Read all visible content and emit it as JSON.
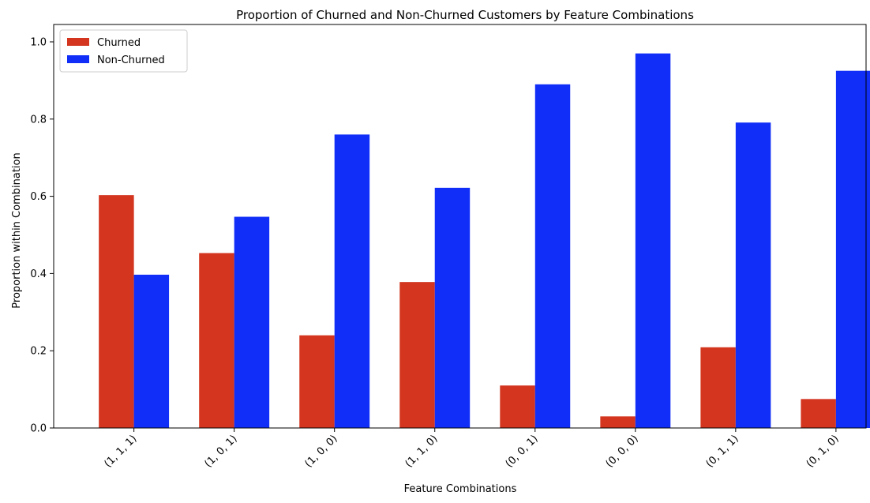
{
  "chart_data": {
    "type": "bar",
    "title": "Proportion of Churned and Non-Churned Customers by Feature Combinations",
    "xlabel": "Feature Combinations",
    "ylabel": "Proportion within Combination",
    "categories": [
      "(1, 1, 1)",
      "(1, 0, 1)",
      "(1, 0, 0)",
      "(1, 1, 0)",
      "(0, 0, 1)",
      "(0, 0, 0)",
      "(0, 1, 1)",
      "(0, 1, 0)"
    ],
    "series": [
      {
        "name": "Churned",
        "color": "#d3351f",
        "values": [
          0.603,
          0.453,
          0.24,
          0.378,
          0.11,
          0.03,
          0.209,
          0.075
        ]
      },
      {
        "name": "Non-Churned",
        "color": "#102ef7",
        "values": [
          0.397,
          0.547,
          0.76,
          0.622,
          0.89,
          0.97,
          0.791,
          0.925
        ]
      }
    ],
    "ylim": [
      0,
      1.0
    ],
    "yticks": [
      "0.0",
      "0.2",
      "0.4",
      "0.6",
      "0.8",
      "1.0"
    ],
    "grid": false,
    "legend_position": "top-left"
  }
}
